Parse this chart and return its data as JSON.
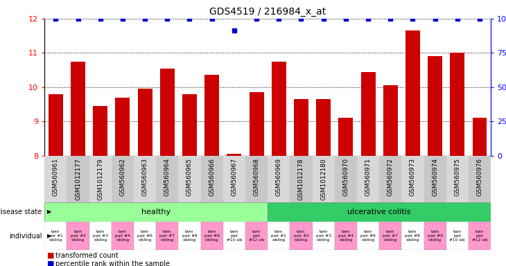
{
  "title": "GDS4519 / 216984_x_at",
  "samples": [
    "GSM560961",
    "GSM1012177",
    "GSM1012179",
    "GSM560962",
    "GSM560963",
    "GSM560964",
    "GSM560965",
    "GSM560966",
    "GSM560967",
    "GSM560968",
    "GSM560969",
    "GSM1012178",
    "GSM1012180",
    "GSM560970",
    "GSM560971",
    "GSM560972",
    "GSM560973",
    "GSM560974",
    "GSM560975",
    "GSM560976"
  ],
  "bar_values": [
    9.8,
    10.75,
    9.45,
    9.7,
    9.95,
    10.55,
    9.8,
    10.35,
    8.05,
    9.85,
    10.75,
    9.65,
    9.65,
    9.1,
    10.45,
    10.05,
    11.65,
    10.9,
    11.0,
    9.1
  ],
  "percentile_values": [
    12,
    12,
    12,
    12,
    12,
    12,
    12,
    12,
    11.65,
    12,
    12,
    12,
    12,
    12,
    12,
    12,
    12,
    12,
    12,
    12
  ],
  "bar_color": "#cc0000",
  "percentile_color": "#0000cc",
  "ylim_left": [
    8,
    12
  ],
  "yticks_left": [
    8,
    9,
    10,
    11,
    12
  ],
  "right_tick_positions": [
    8,
    9,
    10,
    11,
    12
  ],
  "right_tick_labels": [
    "0",
    "25",
    "50",
    "75",
    "100%"
  ],
  "disease_state_healthy": "healthy",
  "disease_state_uc": "ulcerative colitis",
  "disease_state_healthy_color": "#99ff99",
  "disease_state_uc_color": "#33cc66",
  "individual_color_white": "#ffffff",
  "individual_color_pink": "#ff99cc",
  "individual_labels": [
    "twin\npair #1\nsibling",
    "twin\npair #2\nsibling",
    "twin\npair #3\nsibling",
    "twin\npair #4\nsibling",
    "twin\npair #6\nsibling",
    "twin\npair #7\nsibling",
    "twin\npair #8\nsibling",
    "twin\npair #9\nsibling",
    "twin\npair\n#10 sib",
    "twin\npair\n#12 sib",
    "twin\npair #1\nsibling",
    "twin\npair #2\nsibling",
    "twin\npair #3\nsibling",
    "twin\npair #4\nsibling",
    "twin\npair #6\nsibling",
    "twin\npair #7\nsibling",
    "twin\npair #8\nsibling",
    "twin\npair #9\nsibling",
    "twin\npair\n#10 sib",
    "twin\npair\n#12 sib"
  ],
  "legend_bar_label": "transformed count",
  "legend_pct_label": "percentile rank within the sample",
  "background_color": "#ffffff",
  "bar_width": 0.65,
  "n_healthy": 10,
  "n_uc": 10
}
